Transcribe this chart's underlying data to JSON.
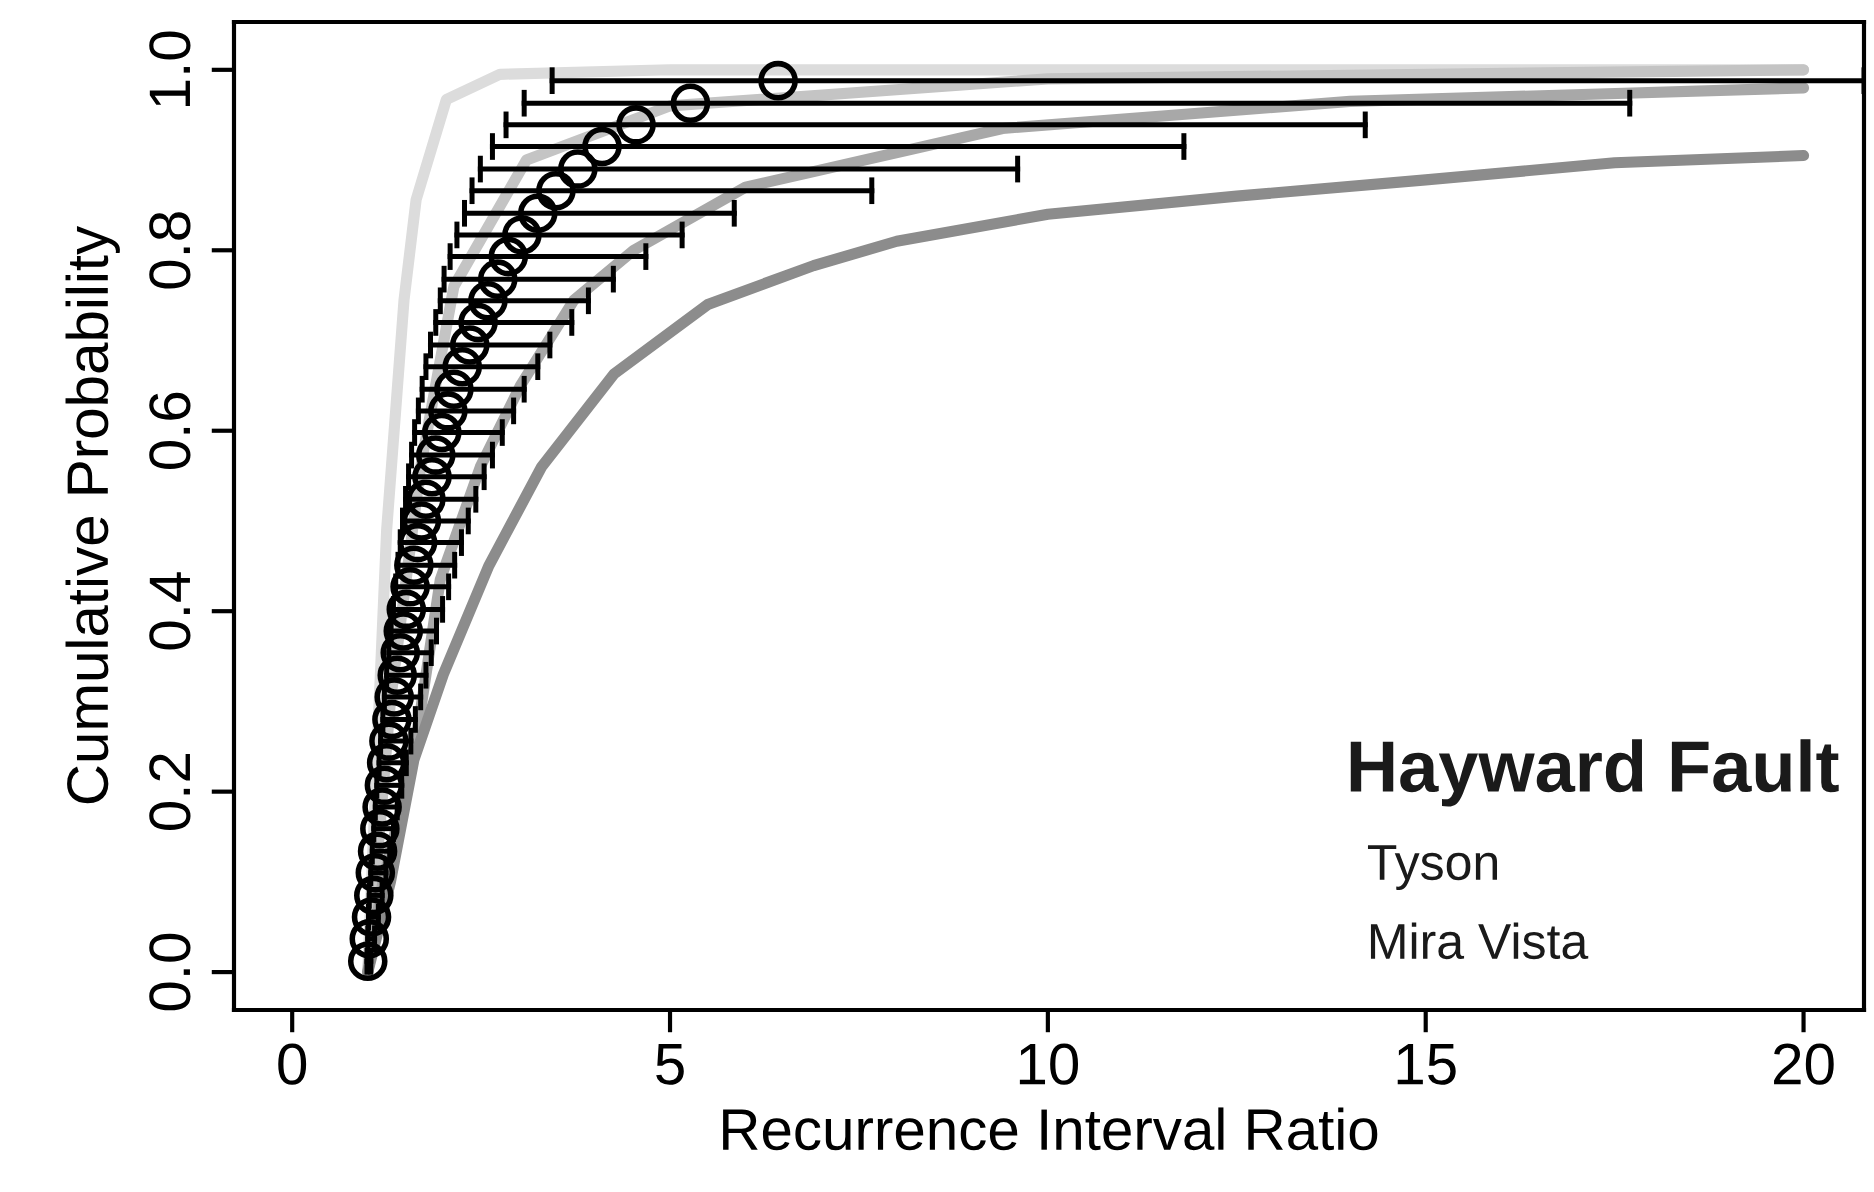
{
  "chart_data": {
    "type": "line",
    "xlabel": "Recurrence Interval Ratio",
    "ylabel": "Cumulative Probability",
    "xlim": [
      -0.77,
      20.8
    ],
    "ylim": [
      -0.042,
      1.053
    ],
    "xticks": [
      0,
      5,
      10,
      15,
      20
    ],
    "yticks": [
      {
        "value": 0,
        "label": "0.0"
      },
      {
        "value": 0.2,
        "label": "0.2"
      },
      {
        "value": 0.4,
        "label": "0.4"
      },
      {
        "value": 0.6,
        "label": "0.6"
      },
      {
        "value": 0.8,
        "label": "0.8"
      },
      {
        "value": 1,
        "label": "1.0"
      }
    ],
    "grid": false,
    "legend": false,
    "annotations": [
      "Hayward Fault",
      "Tyson",
      "Mira Vista"
    ],
    "series": [
      {
        "color": "#dcdcdc",
        "x": [
          1.0,
          1.1,
          1.25,
          1.48,
          1.64,
          2.04,
          2.75,
          5,
          20
        ],
        "values": [
          0,
          0.2,
          0.49,
          0.745,
          0.856,
          0.967,
          0.995,
          1.0,
          1.0
        ]
      },
      {
        "color": "#c4c4c4",
        "x": [
          1,
          1.3,
          1.7,
          2.14,
          3.1,
          5,
          10,
          20
        ],
        "values": [
          0,
          0.3,
          0.56,
          0.76,
          0.9,
          0.96,
          0.99,
          1.0
        ]
      },
      {
        "color": "#a8a8a8",
        "x": [
          1,
          1.2,
          1.6,
          1.96,
          2.49,
          3.02,
          3.73,
          4.52,
          6,
          9.4,
          14,
          20
        ],
        "values": [
          0,
          0.1,
          0.235,
          0.435,
          0.56,
          0.65,
          0.745,
          0.8,
          0.87,
          0.935,
          0.965,
          0.98
        ]
      },
      {
        "color": "#8c8c8c",
        "x": [
          1,
          1.3,
          1.61,
          2.0,
          2.6,
          3.3,
          4.26,
          5.5,
          6.9,
          8,
          10,
          12.5,
          15,
          17.5,
          20
        ],
        "values": [
          0,
          0.1,
          0.235,
          0.33,
          0.45,
          0.56,
          0.663,
          0.74,
          0.783,
          0.81,
          0.84,
          0.86,
          0.878,
          0.897,
          0.905
        ]
      },
      {
        "type": "scatter",
        "color": "#000000",
        "marker": "circle",
        "x": [
          1.0,
          1.02,
          1.05,
          1.08,
          1.1,
          1.13,
          1.16,
          1.19,
          1.22,
          1.25,
          1.28,
          1.32,
          1.35,
          1.39,
          1.43,
          1.47,
          1.51,
          1.56,
          1.61,
          1.66,
          1.71,
          1.77,
          1.85,
          1.9,
          1.98,
          2.06,
          2.14,
          2.25,
          2.35,
          2.46,
          2.59,
          2.72,
          2.86,
          3.04,
          3.25,
          3.49,
          3.78,
          4.1,
          4.55,
          5.27,
          6.43
        ],
        "values": [
          0.012,
          0.037,
          0.061,
          0.085,
          0.11,
          0.134,
          0.159,
          0.183,
          0.207,
          0.232,
          0.256,
          0.28,
          0.305,
          0.329,
          0.354,
          0.378,
          0.402,
          0.427,
          0.451,
          0.476,
          0.5,
          0.524,
          0.549,
          0.573,
          0.598,
          0.622,
          0.646,
          0.671,
          0.695,
          0.72,
          0.744,
          0.768,
          0.793,
          0.817,
          0.841,
          0.866,
          0.89,
          0.915,
          0.939,
          0.963,
          0.988
        ],
        "xerrors": [
          [
            0.99,
            1.04
          ],
          [
            1.0,
            1.09
          ],
          [
            1.01,
            1.14
          ],
          [
            1.02,
            1.19
          ],
          [
            1.04,
            1.24
          ],
          [
            1.06,
            1.29
          ],
          [
            1.08,
            1.34
          ],
          [
            1.1,
            1.39
          ],
          [
            1.12,
            1.45
          ],
          [
            1.15,
            1.51
          ],
          [
            1.17,
            1.57
          ],
          [
            1.2,
            1.63
          ],
          [
            1.22,
            1.7
          ],
          [
            1.25,
            1.77
          ],
          [
            1.28,
            1.84
          ],
          [
            1.31,
            1.91
          ],
          [
            1.34,
            1.99
          ],
          [
            1.37,
            2.07
          ],
          [
            1.4,
            2.15
          ],
          [
            1.43,
            2.24
          ],
          [
            1.46,
            2.33
          ],
          [
            1.5,
            2.43
          ],
          [
            1.54,
            2.54
          ],
          [
            1.58,
            2.65
          ],
          [
            1.62,
            2.78
          ],
          [
            1.67,
            2.93
          ],
          [
            1.72,
            3.07
          ],
          [
            1.77,
            3.25
          ],
          [
            1.83,
            3.41
          ],
          [
            1.9,
            3.7
          ],
          [
            1.96,
            3.92
          ],
          [
            2.01,
            4.25
          ],
          [
            2.09,
            4.68
          ],
          [
            2.18,
            5.16
          ],
          [
            2.28,
            5.85
          ],
          [
            2.38,
            7.67
          ],
          [
            2.49,
            9.6
          ],
          [
            2.65,
            11.8
          ],
          [
            2.83,
            14.2
          ],
          [
            3.07,
            17.7
          ],
          [
            3.44,
            20.8
          ]
        ]
      }
    ]
  }
}
